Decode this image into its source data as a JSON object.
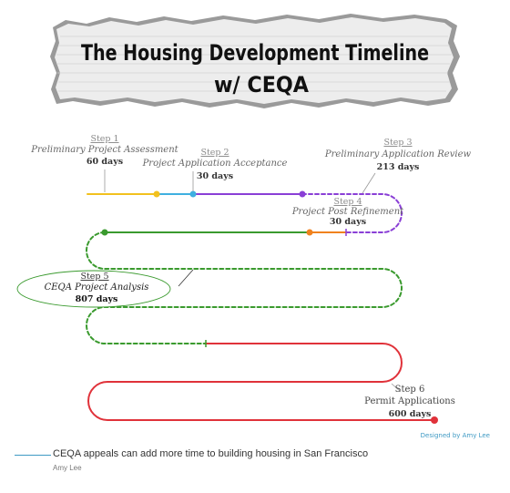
{
  "title": {
    "line1": "The Housing Development Timeline",
    "line2": "w/ CEQA"
  },
  "steps": [
    {
      "number": "Step 1",
      "name": "Preliminary Project Assessment",
      "days": "60 days"
    },
    {
      "number": "Step 2",
      "name": "Project Application Acceptance",
      "days": "30 days"
    },
    {
      "number": "Step 3",
      "name": "Preliminary Application Review",
      "days": "213 days"
    },
    {
      "number": "Step 4",
      "name": "Project Post Refinement",
      "days": "30 days"
    },
    {
      "number": "Step 5",
      "name": "CEQA Project Analysis",
      "days": "807 days"
    },
    {
      "number": "Step 6",
      "name": "Permit Applications",
      "days": "600 days"
    }
  ],
  "credit": "Designed by Amy Lee",
  "caption": {
    "text": "CEQA appeals can add more time to building housing in San Francisco",
    "byline": "Amy Lee"
  },
  "colors": {
    "step1": "#f2c11e",
    "step2": "#3fb0e0",
    "step3": "#8a3fd6",
    "step4": "#f0821e",
    "step5": "#3a9a2e",
    "step6": "#e0323a",
    "accent": "#3f9ac4"
  }
}
